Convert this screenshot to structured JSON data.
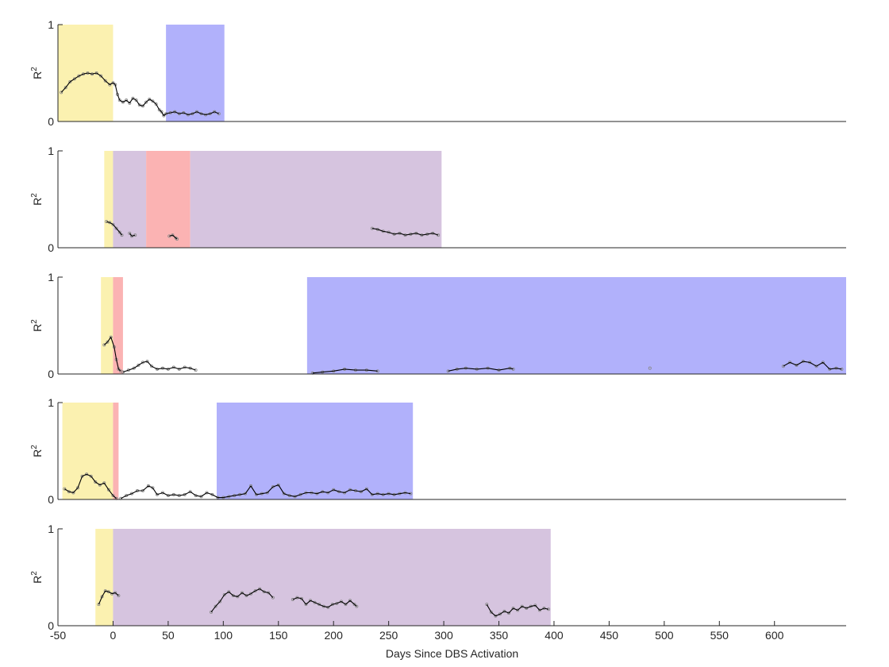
{
  "chart_data": {
    "type": "scatter",
    "xlabel": "Days Since DBS Activation",
    "ylabel": "R",
    "ylabel_superscript": "2",
    "xlim": [
      -50,
      665
    ],
    "xticks": [
      "-50",
      "0",
      "50",
      "100",
      "150",
      "200",
      "250",
      "300",
      "350",
      "400",
      "450",
      "500",
      "550",
      "600"
    ],
    "ylim": [
      0,
      1
    ],
    "yticks": [
      "0",
      "1"
    ],
    "grid": false,
    "legend": "none",
    "colors": {
      "yellow": "#fbf1b0",
      "blue": "#b1b1fb",
      "purple": "#d6c4df",
      "red": "#fbb3b3",
      "line": "#000000",
      "points": "#888888"
    },
    "panels": [
      {
        "shaded_regions": [
          {
            "x0": -50,
            "x1": 0,
            "color": "yellow"
          },
          {
            "x0": 48,
            "x1": 101,
            "color": "blue"
          }
        ],
        "segments": [
          [
            [
              -47,
              0.3
            ],
            [
              -43,
              0.35
            ],
            [
              -39,
              0.41
            ],
            [
              -35,
              0.44
            ],
            [
              -31,
              0.47
            ],
            [
              -27,
              0.49
            ],
            [
              -23,
              0.5
            ],
            [
              -19,
              0.49
            ],
            [
              -15,
              0.5
            ],
            [
              -11,
              0.47
            ],
            [
              -7,
              0.42
            ],
            [
              -3,
              0.38
            ],
            [
              0,
              0.4
            ],
            [
              2,
              0.38
            ],
            [
              4,
              0.28
            ],
            [
              6,
              0.22
            ],
            [
              9,
              0.2
            ],
            [
              12,
              0.22
            ],
            [
              15,
              0.19
            ],
            [
              18,
              0.24
            ],
            [
              21,
              0.22
            ],
            [
              24,
              0.17
            ],
            [
              27,
              0.16
            ],
            [
              30,
              0.2
            ],
            [
              33,
              0.23
            ],
            [
              36,
              0.21
            ],
            [
              39,
              0.18
            ],
            [
              42,
              0.12
            ],
            [
              44,
              0.1
            ],
            [
              46,
              0.06
            ],
            [
              48,
              0.08
            ],
            [
              52,
              0.09
            ],
            [
              56,
              0.1
            ],
            [
              60,
              0.08
            ],
            [
              64,
              0.09
            ],
            [
              68,
              0.07
            ],
            [
              72,
              0.08
            ],
            [
              76,
              0.1
            ],
            [
              80,
              0.08
            ],
            [
              84,
              0.07
            ],
            [
              88,
              0.08
            ],
            [
              92,
              0.1
            ],
            [
              96,
              0.08
            ]
          ]
        ]
      },
      {
        "shaded_regions": [
          {
            "x0": -8,
            "x1": 0,
            "color": "yellow"
          },
          {
            "x0": 0,
            "x1": 30,
            "color": "purple"
          },
          {
            "x0": 30,
            "x1": 70,
            "color": "red"
          },
          {
            "x0": 70,
            "x1": 298,
            "color": "purple"
          }
        ],
        "segments": [
          [
            [
              -6,
              0.27
            ],
            [
              -3,
              0.26
            ],
            [
              0,
              0.24
            ],
            [
              3,
              0.2
            ],
            [
              6,
              0.16
            ],
            [
              8,
              0.13
            ]
          ],
          [
            [
              15,
              0.15
            ],
            [
              17,
              0.12
            ],
            [
              20,
              0.13
            ]
          ],
          [
            [
              51,
              0.12
            ],
            [
              54,
              0.13
            ],
            [
              57,
              0.1
            ],
            [
              58,
              0.09
            ]
          ],
          [
            [
              235,
              0.2
            ],
            [
              240,
              0.19
            ],
            [
              245,
              0.17
            ],
            [
              250,
              0.16
            ],
            [
              255,
              0.14
            ],
            [
              260,
              0.15
            ],
            [
              265,
              0.13
            ],
            [
              270,
              0.14
            ],
            [
              275,
              0.15
            ],
            [
              280,
              0.13
            ],
            [
              285,
              0.14
            ],
            [
              290,
              0.15
            ],
            [
              295,
              0.13
            ]
          ]
        ]
      },
      {
        "shaded_regions": [
          {
            "x0": -11,
            "x1": 0,
            "color": "yellow"
          },
          {
            "x0": 0,
            "x1": 9,
            "color": "red"
          },
          {
            "x0": 176,
            "x1": 665,
            "color": "blue"
          }
        ],
        "segments": [
          [
            [
              -8,
              0.3
            ],
            [
              -5,
              0.33
            ],
            [
              -2,
              0.38
            ],
            [
              1,
              0.28
            ],
            [
              3,
              0.15
            ],
            [
              5,
              0.05
            ],
            [
              7,
              0.03
            ]
          ],
          [
            [
              9,
              0.02
            ],
            [
              14,
              0.04
            ],
            [
              19,
              0.06
            ],
            [
              23,
              0.09
            ],
            [
              27,
              0.12
            ],
            [
              31,
              0.13
            ],
            [
              35,
              0.08
            ],
            [
              40,
              0.05
            ],
            [
              45,
              0.06
            ],
            [
              50,
              0.05
            ],
            [
              55,
              0.07
            ],
            [
              60,
              0.05
            ],
            [
              65,
              0.07
            ],
            [
              70,
              0.06
            ],
            [
              75,
              0.04
            ]
          ],
          [
            [
              181,
              0.01
            ],
            [
              190,
              0.02
            ],
            [
              200,
              0.03
            ],
            [
              210,
              0.05
            ],
            [
              220,
              0.04
            ],
            [
              230,
              0.04
            ],
            [
              240,
              0.03
            ]
          ],
          [
            [
              304,
              0.03
            ],
            [
              312,
              0.05
            ],
            [
              320,
              0.06
            ],
            [
              330,
              0.05
            ],
            [
              340,
              0.06
            ],
            [
              350,
              0.04
            ],
            [
              360,
              0.06
            ],
            [
              363,
              0.05
            ]
          ],
          [
            [
              608,
              0.08
            ],
            [
              614,
              0.12
            ],
            [
              620,
              0.09
            ],
            [
              626,
              0.13
            ],
            [
              632,
              0.12
            ],
            [
              638,
              0.08
            ],
            [
              644,
              0.12
            ],
            [
              650,
              0.05
            ],
            [
              656,
              0.06
            ],
            [
              661,
              0.05
            ]
          ]
        ],
        "isolated_points": [
          [
            487,
            0.06
          ]
        ]
      },
      {
        "shaded_regions": [
          {
            "x0": -46,
            "x1": 0,
            "color": "yellow"
          },
          {
            "x0": 0,
            "x1": 5,
            "color": "red"
          },
          {
            "x0": 94,
            "x1": 272,
            "color": "blue"
          }
        ],
        "segments": [
          [
            [
              -44,
              0.11
            ],
            [
              -40,
              0.08
            ],
            [
              -36,
              0.07
            ],
            [
              -32,
              0.12
            ],
            [
              -28,
              0.24
            ],
            [
              -24,
              0.26
            ],
            [
              -20,
              0.24
            ],
            [
              -16,
              0.18
            ],
            [
              -12,
              0.15
            ],
            [
              -8,
              0.17
            ],
            [
              -4,
              0.1
            ],
            [
              0,
              0.04
            ],
            [
              3,
              0.01
            ]
          ],
          [
            [
              7,
              0.01
            ],
            [
              12,
              0.04
            ],
            [
              17,
              0.06
            ],
            [
              22,
              0.09
            ],
            [
              27,
              0.09
            ],
            [
              32,
              0.14
            ],
            [
              36,
              0.12
            ],
            [
              40,
              0.05
            ],
            [
              45,
              0.07
            ],
            [
              50,
              0.04
            ],
            [
              55,
              0.05
            ],
            [
              60,
              0.04
            ],
            [
              65,
              0.05
            ],
            [
              70,
              0.08
            ],
            [
              75,
              0.04
            ],
            [
              80,
              0.03
            ],
            [
              85,
              0.07
            ],
            [
              90,
              0.05
            ],
            [
              95,
              0.02
            ],
            [
              100,
              0.02
            ],
            [
              105,
              0.03
            ],
            [
              110,
              0.04
            ],
            [
              115,
              0.05
            ],
            [
              120,
              0.06
            ],
            [
              125,
              0.14
            ],
            [
              130,
              0.05
            ],
            [
              135,
              0.06
            ],
            [
              140,
              0.07
            ],
            [
              145,
              0.13
            ],
            [
              150,
              0.15
            ],
            [
              155,
              0.06
            ],
            [
              160,
              0.04
            ],
            [
              165,
              0.03
            ],
            [
              170,
              0.05
            ],
            [
              175,
              0.07
            ],
            [
              180,
              0.07
            ],
            [
              185,
              0.06
            ],
            [
              190,
              0.08
            ],
            [
              195,
              0.07
            ],
            [
              200,
              0.1
            ],
            [
              205,
              0.08
            ],
            [
              210,
              0.07
            ],
            [
              215,
              0.1
            ],
            [
              220,
              0.09
            ],
            [
              225,
              0.08
            ],
            [
              230,
              0.11
            ],
            [
              235,
              0.05
            ],
            [
              240,
              0.06
            ],
            [
              245,
              0.05
            ],
            [
              250,
              0.06
            ],
            [
              255,
              0.05
            ],
            [
              260,
              0.06
            ],
            [
              265,
              0.07
            ],
            [
              270,
              0.06
            ]
          ]
        ]
      },
      {
        "shaded_regions": [
          {
            "x0": -16,
            "x1": 0,
            "color": "yellow"
          },
          {
            "x0": 0,
            "x1": 397,
            "color": "purple"
          }
        ],
        "segments": [
          [
            [
              -13,
              0.22
            ],
            [
              -10,
              0.3
            ],
            [
              -7,
              0.36
            ],
            [
              -4,
              0.35
            ],
            [
              -1,
              0.33
            ],
            [
              2,
              0.34
            ],
            [
              5,
              0.31
            ]
          ],
          [
            [
              89,
              0.14
            ],
            [
              93,
              0.2
            ],
            [
              97,
              0.25
            ],
            [
              101,
              0.32
            ],
            [
              105,
              0.35
            ],
            [
              109,
              0.31
            ],
            [
              113,
              0.3
            ],
            [
              117,
              0.34
            ],
            [
              121,
              0.31
            ],
            [
              125,
              0.33
            ],
            [
              129,
              0.36
            ],
            [
              133,
              0.38
            ],
            [
              137,
              0.35
            ],
            [
              141,
              0.34
            ],
            [
              145,
              0.29
            ]
          ],
          [
            [
              163,
              0.27
            ],
            [
              167,
              0.29
            ],
            [
              171,
              0.28
            ],
            [
              175,
              0.22
            ],
            [
              179,
              0.26
            ],
            [
              183,
              0.24
            ],
            [
              187,
              0.22
            ],
            [
              191,
              0.2
            ],
            [
              195,
              0.19
            ],
            [
              199,
              0.22
            ],
            [
              203,
              0.23
            ],
            [
              207,
              0.25
            ],
            [
              211,
              0.22
            ],
            [
              215,
              0.26
            ],
            [
              219,
              0.22
            ],
            [
              221,
              0.2
            ]
          ],
          [
            [
              339,
              0.22
            ],
            [
              343,
              0.14
            ],
            [
              347,
              0.1
            ],
            [
              351,
              0.12
            ],
            [
              355,
              0.15
            ],
            [
              359,
              0.13
            ],
            [
              363,
              0.18
            ],
            [
              367,
              0.16
            ],
            [
              371,
              0.2
            ],
            [
              375,
              0.18
            ],
            [
              379,
              0.2
            ],
            [
              383,
              0.21
            ],
            [
              387,
              0.16
            ],
            [
              391,
              0.18
            ],
            [
              395,
              0.17
            ]
          ]
        ]
      }
    ]
  }
}
